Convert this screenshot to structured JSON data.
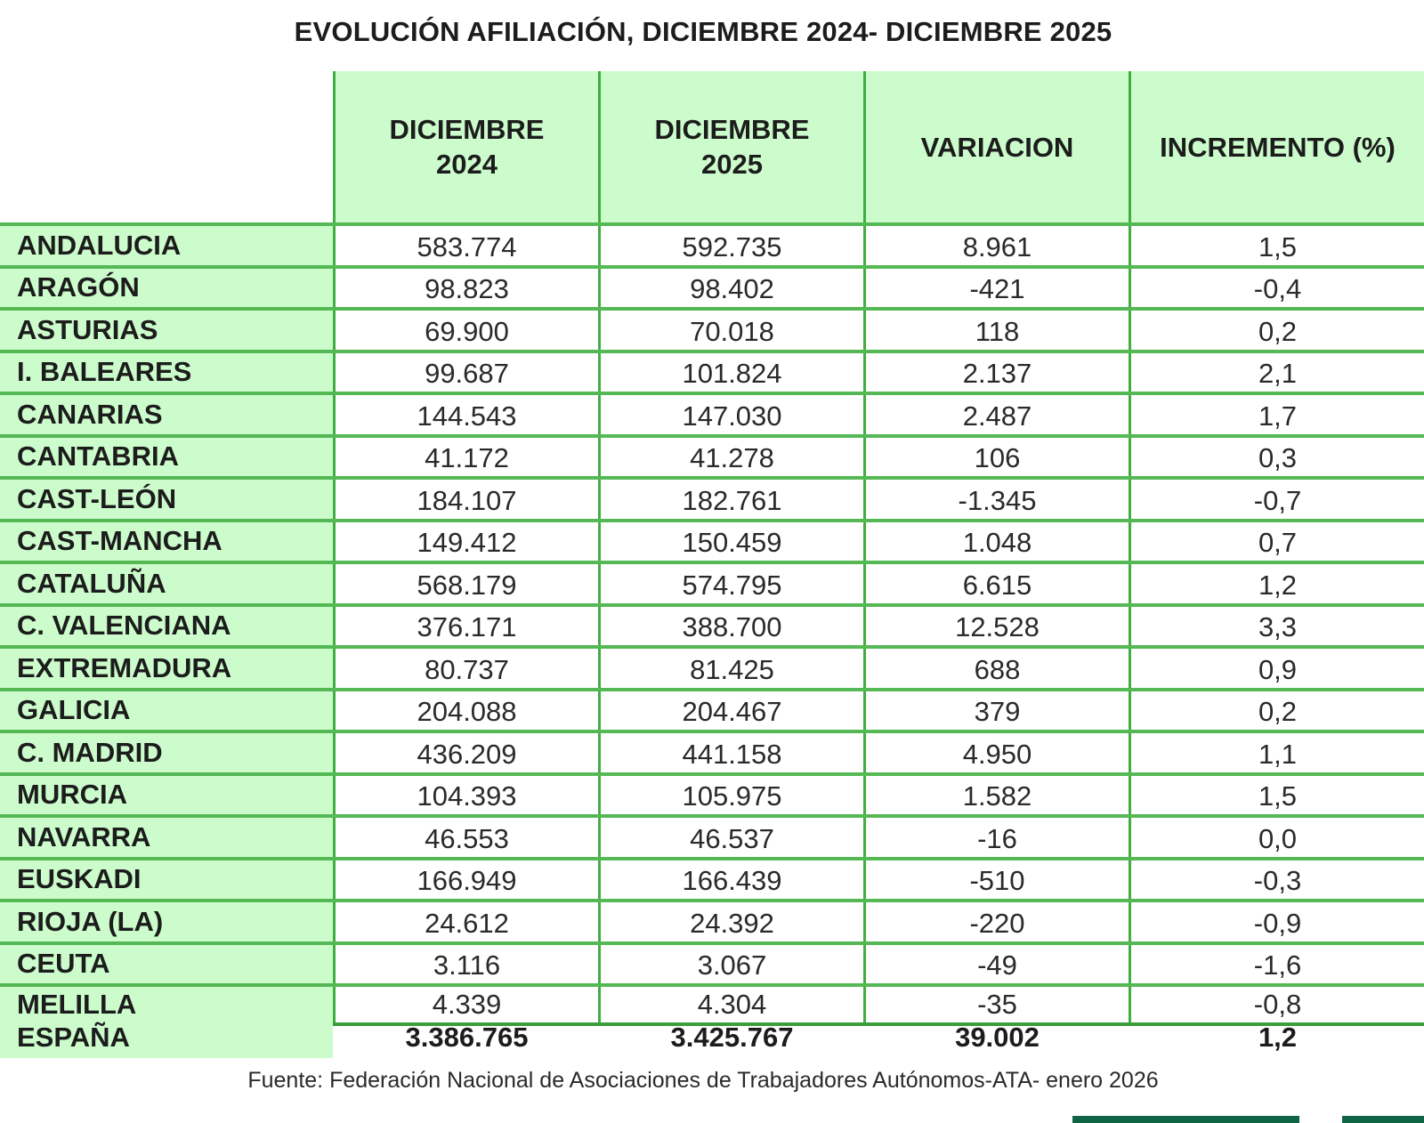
{
  "title": "EVOLUCIÓN AFILIACIÓN, DICIEMBRE 2024- DICIEMBRE 2025",
  "columns": [
    {
      "line1": "DICIEMBRE",
      "line2": "2024"
    },
    {
      "line1": "DICIEMBRE",
      "line2": "2025"
    },
    {
      "line1": "VARIACION",
      "line2": ""
    },
    {
      "line1": "INCREMENTO (%)",
      "line2": ""
    }
  ],
  "rows": [
    {
      "region": "ANDALUCIA",
      "dic2024": "583.774",
      "dic2025": "592.735",
      "variacion": "8.961",
      "incremento": "1,5"
    },
    {
      "region": "ARAGÓN",
      "dic2024": "98.823",
      "dic2025": "98.402",
      "variacion": "-421",
      "incremento": "-0,4"
    },
    {
      "region": "ASTURIAS",
      "dic2024": "69.900",
      "dic2025": "70.018",
      "variacion": "118",
      "incremento": "0,2"
    },
    {
      "region": "I. BALEARES",
      "dic2024": "99.687",
      "dic2025": "101.824",
      "variacion": "2.137",
      "incremento": "2,1"
    },
    {
      "region": "CANARIAS",
      "dic2024": "144.543",
      "dic2025": "147.030",
      "variacion": "2.487",
      "incremento": "1,7"
    },
    {
      "region": "CANTABRIA",
      "dic2024": "41.172",
      "dic2025": "41.278",
      "variacion": "106",
      "incremento": "0,3"
    },
    {
      "region": "CAST-LEÓN",
      "dic2024": "184.107",
      "dic2025": "182.761",
      "variacion": "-1.345",
      "incremento": "-0,7"
    },
    {
      "region": "CAST-MANCHA",
      "dic2024": "149.412",
      "dic2025": "150.459",
      "variacion": "1.048",
      "incremento": "0,7"
    },
    {
      "region": "CATALUÑA",
      "dic2024": "568.179",
      "dic2025": "574.795",
      "variacion": "6.615",
      "incremento": "1,2"
    },
    {
      "region": "C. VALENCIANA",
      "dic2024": "376.171",
      "dic2025": "388.700",
      "variacion": "12.528",
      "incremento": "3,3"
    },
    {
      "region": "EXTREMADURA",
      "dic2024": "80.737",
      "dic2025": "81.425",
      "variacion": "688",
      "incremento": "0,9"
    },
    {
      "region": "GALICIA",
      "dic2024": "204.088",
      "dic2025": "204.467",
      "variacion": "379",
      "incremento": "0,2"
    },
    {
      "region": "C. MADRID",
      "dic2024": "436.209",
      "dic2025": "441.158",
      "variacion": "4.950",
      "incremento": "1,1"
    },
    {
      "region": "MURCIA",
      "dic2024": "104.393",
      "dic2025": "105.975",
      "variacion": "1.582",
      "incremento": "1,5"
    },
    {
      "region": "NAVARRA",
      "dic2024": "46.553",
      "dic2025": "46.537",
      "variacion": "-16",
      "incremento": "0,0"
    },
    {
      "region": "EUSKADI",
      "dic2024": "166.949",
      "dic2025": "166.439",
      "variacion": "-510",
      "incremento": "-0,3"
    },
    {
      "region": "RIOJA (LA)",
      "dic2024": "24.612",
      "dic2025": "24.392",
      "variacion": "-220",
      "incremento": "-0,9"
    },
    {
      "region": "CEUTA",
      "dic2024": "3.116",
      "dic2025": "3.067",
      "variacion": "-49",
      "incremento": "-1,6"
    },
    {
      "region": "MELILLA",
      "dic2024": "4.339",
      "dic2025": "4.304",
      "variacion": "-35",
      "incremento": "-0,8"
    }
  ],
  "total": {
    "region": "ESPAÑA",
    "dic2024": "3.386.765",
    "dic2025": "3.425.767",
    "variacion": "39.002",
    "incremento": "1,2"
  },
  "source": "Fuente: Federación Nacional de Asociaciones de Trabajadores Autónomos-ATA- enero 2026",
  "colors": {
    "header_fill": "#ccfccc",
    "grid_line": "#3fae3f",
    "accent_bar": "#0f6446"
  }
}
